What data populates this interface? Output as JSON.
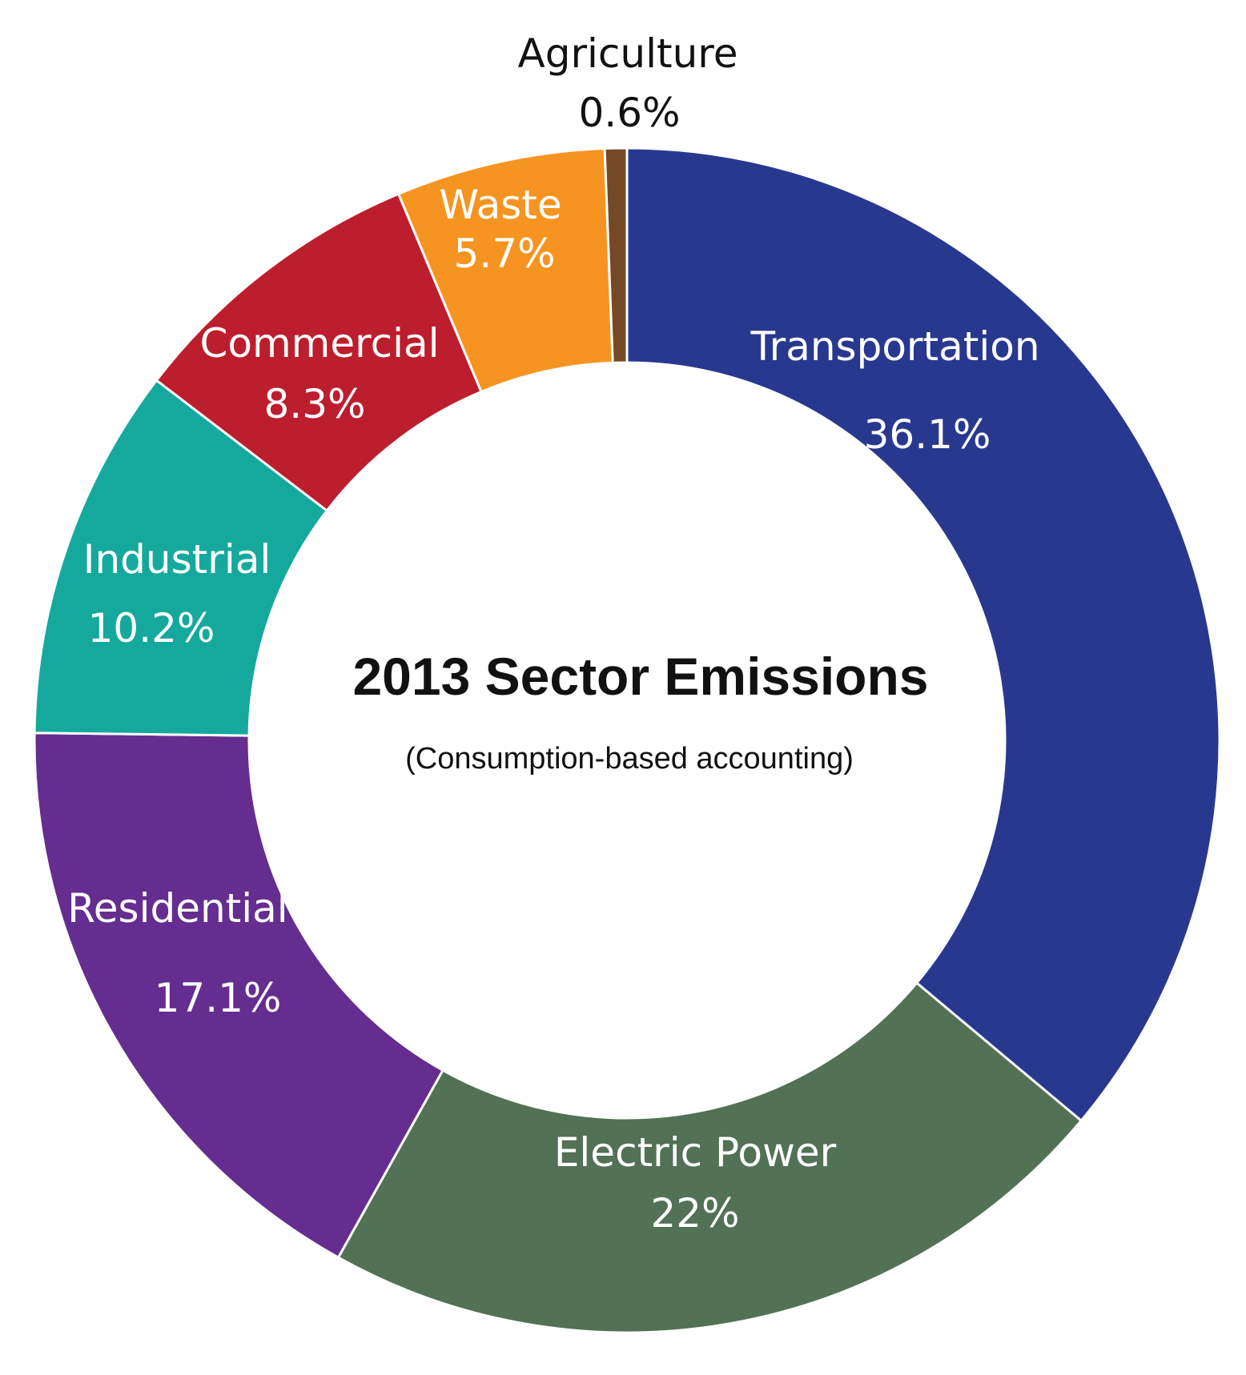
{
  "chart_data": {
    "type": "pie",
    "donut": true,
    "title": "2013 Sector Emissions",
    "subtitle": "(Consumption-based accounting)",
    "slices": [
      {
        "label": "Transportation",
        "value": 36.1,
        "value_text": "36.1%",
        "color": "#29388f",
        "text_color": "#ffffff"
      },
      {
        "label": "Electric Power",
        "value": 22.0,
        "value_text": "22%",
        "color": "#527155",
        "text_color": "#ffffff"
      },
      {
        "label": "Residential",
        "value": 17.1,
        "value_text": "17.1%",
        "color": "#652d8f",
        "text_color": "#ffffff"
      },
      {
        "label": "Industrial",
        "value": 10.2,
        "value_text": "10.2%",
        "color": "#15a99e",
        "text_color": "#ffffff"
      },
      {
        "label": "Commercial",
        "value": 8.3,
        "value_text": "8.3%",
        "color": "#bd1e2d",
        "text_color": "#ffffff"
      },
      {
        "label": "Waste",
        "value": 5.7,
        "value_text": "5.7%",
        "color": "#f69421",
        "text_color": "#ffffff"
      },
      {
        "label": "Agriculture",
        "value": 0.6,
        "value_text": "0.6%",
        "color": "#754826",
        "text_color": "#111111"
      }
    ]
  }
}
